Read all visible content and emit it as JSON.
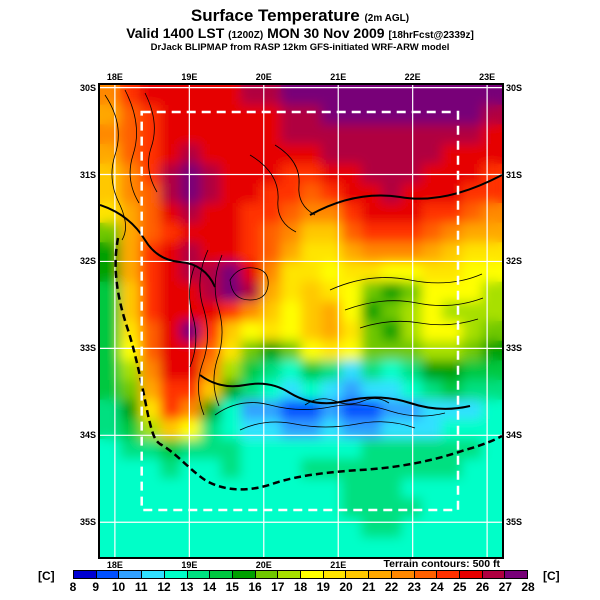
{
  "header": {
    "title": "Surface Temperature",
    "title_suffix": "(2m AGL)",
    "valid_prefix": "Valid 1400 LST",
    "valid_utc": "(1200Z)",
    "valid_date": "MON 30 Nov 2009",
    "valid_fcst": "[18hrFcst@2339z]",
    "model_line": "DrJack BLIPMAP from RASP 12km GFS-initiated WRF-ARW model"
  },
  "map": {
    "terrain_note": "Terrain contours: 500 ft",
    "top_tick_labels": [
      "18E",
      "19E",
      "20E",
      "21E",
      "22E",
      "23E"
    ],
    "bottom_tick_labels": [
      "18E",
      "19E",
      "20E",
      "21E"
    ],
    "left_tick_labels": [
      "30S",
      "31S",
      "32S",
      "33S",
      "34S",
      "35S"
    ],
    "right_tick_labels": [
      "30S",
      "31S",
      "32S",
      "33S",
      "34S",
      "35S"
    ]
  },
  "colorbar": {
    "unit_left": "[C]",
    "unit_right": "[C]",
    "ticks": [
      8,
      9,
      10,
      11,
      12,
      13,
      14,
      15,
      16,
      17,
      18,
      19,
      20,
      21,
      22,
      23,
      24,
      25,
      26,
      27,
      28
    ]
  },
  "chart_data": {
    "type": "heatmap",
    "title": "Surface Temperature (2m AGL)",
    "subtitle": "Valid 1400 LST (1200Z) MON 30 Nov 2009 [18hrFcst@2339z]",
    "source": "DrJack BLIPMAP from RASP 12km GFS-initiated WRF-ARW model",
    "units": "C",
    "legend_levels": [
      8,
      9,
      10,
      11,
      12,
      13,
      14,
      15,
      16,
      17,
      18,
      19,
      20,
      21,
      22,
      23,
      24,
      25,
      26,
      27,
      28
    ],
    "palette": [
      "#0000d2",
      "#0050ff",
      "#30a0ff",
      "#30e0ff",
      "#00ffc8",
      "#00e080",
      "#00c840",
      "#00a000",
      "#70c800",
      "#a8e000",
      "#ffff00",
      "#ffe400",
      "#ffc800",
      "#ffa800",
      "#ff8800",
      "#ff6000",
      "#ff3000",
      "#e60000",
      "#b00040",
      "#780078"
    ],
    "lon_min": 17.8,
    "lon_max": 23.2,
    "lat_south_min": 29.97,
    "lat_south_max": 35.4,
    "lon_ticks": [
      18,
      19,
      20,
      21,
      22,
      23
    ],
    "lat_ticks": [
      30,
      31,
      32,
      33,
      34,
      35
    ],
    "grid_on": true,
    "gridline_color": "#ffffff",
    "inner_domain": {
      "lon1": 18.36,
      "lon2": 22.61,
      "lat1": 30.28,
      "lat2": 34.86,
      "style": "white-dashed"
    },
    "terrain_contour_interval_ft": 500,
    "values_rows_north_to_south": [
      [
        22,
        24,
        25,
        25,
        25,
        25,
        25,
        26,
        26,
        27,
        28,
        28,
        28,
        28,
        28,
        28,
        28,
        28,
        28,
        27
      ],
      [
        21,
        23,
        24,
        25,
        25,
        25,
        25,
        25,
        25,
        26,
        26,
        27,
        27,
        27,
        27,
        27,
        27,
        27,
        27,
        26
      ],
      [
        22,
        23,
        24,
        25,
        25,
        25,
        25,
        25,
        25,
        26,
        26,
        26,
        26,
        26,
        26,
        26,
        26,
        26,
        26,
        25
      ],
      [
        21,
        23,
        24,
        25,
        26,
        25,
        25,
        25,
        25,
        25,
        25,
        26,
        26,
        26,
        26,
        26,
        26,
        25,
        25,
        25
      ],
      [
        20,
        22,
        24,
        26,
        28,
        26,
        25,
        25,
        25,
        24,
        24,
        25,
        25,
        26,
        26,
        26,
        25,
        25,
        25,
        24
      ],
      [
        20,
        22,
        23,
        26,
        27,
        26,
        25,
        25,
        24,
        24,
        23,
        24,
        25,
        25,
        26,
        25,
        25,
        25,
        24,
        24
      ],
      [
        19,
        21,
        23,
        25,
        26,
        25,
        25,
        24,
        24,
        23,
        22,
        22,
        24,
        25,
        25,
        25,
        24,
        24,
        23,
        22
      ],
      [
        16,
        21,
        23,
        24,
        25,
        25,
        25,
        24,
        23,
        22,
        20,
        20,
        23,
        24,
        24,
        24,
        23,
        22,
        21,
        21
      ],
      [
        15,
        21,
        24,
        25,
        26,
        25,
        25,
        24,
        23,
        21,
        19,
        19,
        21,
        22,
        22,
        22,
        21,
        20,
        19,
        19
      ],
      [
        15,
        21,
        24,
        25,
        26,
        26,
        27,
        25,
        22,
        19,
        19,
        18,
        19,
        19,
        18,
        18,
        19,
        19,
        18,
        18
      ],
      [
        14,
        20,
        24,
        25,
        25,
        26,
        27,
        26,
        21,
        19,
        20,
        19,
        18,
        16,
        15,
        16,
        18,
        18,
        18,
        17
      ],
      [
        14,
        20,
        24,
        25,
        25,
        25,
        24,
        22,
        20,
        18,
        20,
        21,
        18,
        15,
        16,
        17,
        18,
        17,
        17,
        17
      ],
      [
        14,
        19,
        23,
        25,
        27,
        24,
        20,
        18,
        19,
        18,
        20,
        21,
        19,
        16,
        15,
        17,
        18,
        18,
        17,
        16
      ],
      [
        14,
        18,
        23,
        25,
        25,
        23,
        19,
        16,
        15,
        16,
        18,
        19,
        18,
        16,
        16,
        16,
        17,
        17,
        16,
        15
      ],
      [
        14,
        17,
        22,
        25,
        25,
        22,
        17,
        14,
        13,
        12,
        14,
        13,
        11,
        13,
        12,
        13,
        15,
        15,
        14,
        14
      ],
      [
        14,
        16,
        21,
        24,
        24,
        20,
        15,
        13,
        12,
        11,
        12,
        11,
        10,
        11,
        11,
        12,
        13,
        14,
        13,
        13
      ],
      [
        13.5,
        15,
        19,
        24,
        22,
        15,
        12,
        10,
        10,
        9,
        9,
        10,
        9,
        9,
        10,
        10,
        11,
        11,
        11,
        12
      ],
      [
        13.5,
        14,
        17,
        20,
        18,
        13,
        12,
        11,
        11,
        10,
        10,
        11,
        10,
        10,
        11,
        11,
        11,
        12,
        12,
        12
      ],
      [
        12.7,
        13.5,
        13.5,
        14.2,
        13.5,
        13.5,
        13.5,
        12.7,
        12.7,
        12.7,
        12.7,
        12.7,
        12.7,
        13.5,
        13.5,
        13.5,
        13.5,
        13.5,
        13.5,
        12.7
      ],
      [
        12.7,
        12.7,
        12.7,
        13.5,
        12.7,
        12.7,
        13.5,
        12.7,
        12.7,
        12.7,
        13.5,
        13.5,
        13.5,
        13.5,
        13.5,
        13.5,
        13.5,
        13.5,
        12.7,
        12.7
      ],
      [
        12.7,
        12.7,
        12.7,
        12.7,
        12.7,
        12.7,
        12.7,
        12.7,
        12.7,
        12.7,
        12.7,
        12.7,
        13.5,
        13.5,
        13.5,
        12.7,
        12.7,
        12.7,
        12.7,
        12.7
      ],
      [
        12.7,
        12.7,
        12.7,
        12.7,
        12.7,
        12.7,
        12.7,
        12.7,
        12.7,
        12.7,
        12.7,
        12.7,
        13.5,
        13.5,
        13.5,
        13.5,
        12.7,
        12.7,
        12.7,
        12.7
      ],
      [
        12.7,
        12.7,
        12.7,
        12.7,
        12.7,
        12.7,
        12.7,
        12.7,
        12.7,
        12.7,
        12.7,
        12.7,
        12.7,
        13.5,
        13.5,
        12.7,
        12.7,
        12.7,
        12.7,
        12.7
      ],
      [
        12.7,
        12.7,
        12.7,
        12.7,
        12.7,
        12.7,
        12.7,
        12.7,
        12.7,
        12.7,
        12.7,
        12.7,
        12.7,
        12.7,
        12.7,
        12.7,
        12.7,
        12.7,
        12.7,
        12.7
      ]
    ]
  }
}
